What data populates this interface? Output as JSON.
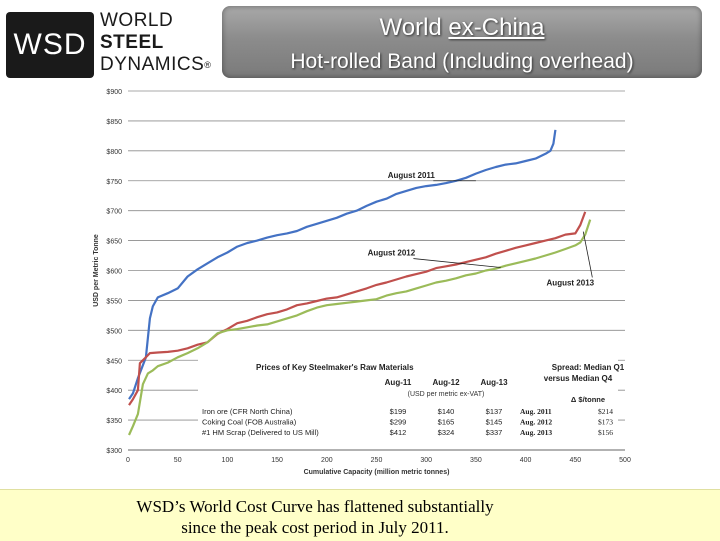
{
  "logo": {
    "abbr": "WSD",
    "line1": "WORLD",
    "line2": "STEEL",
    "line3": "DYNAMICS",
    "mark": "®"
  },
  "header": {
    "title_prefix": "World ",
    "title_underlined": "ex-China",
    "subtitle": "Hot-rolled Band (Including overhead)"
  },
  "caption": {
    "line1": "WSD’s World Cost Curve has flattened substantially",
    "line2": "since the peak cost period in July 2011."
  },
  "chart_data": {
    "type": "line",
    "xlabel": "Cumulative Capacity (million metric tonnes)",
    "ylabel": "USD per Metric Tonne",
    "xlim": [
      0,
      500
    ],
    "ylim": [
      300,
      900
    ],
    "x_ticks": [
      "0",
      "50",
      "100",
      "150",
      "200",
      "250",
      "300",
      "350",
      "400",
      "450",
      "500"
    ],
    "y_ticks": [
      "$300",
      "$350",
      "$400",
      "$450",
      "$500",
      "$550",
      "$600",
      "$650",
      "$700",
      "$750",
      "$800",
      "$850",
      "$900"
    ],
    "grid": true,
    "series": [
      {
        "name": "August 2011",
        "color": "#4472c4",
        "points": [
          [
            1,
            385
          ],
          [
            5,
            395
          ],
          [
            10,
            420
          ],
          [
            18,
            455
          ],
          [
            22,
            520
          ],
          [
            25,
            540
          ],
          [
            30,
            555
          ],
          [
            40,
            562
          ],
          [
            50,
            570
          ],
          [
            60,
            590
          ],
          [
            70,
            602
          ],
          [
            80,
            612
          ],
          [
            90,
            622
          ],
          [
            100,
            630
          ],
          [
            110,
            640
          ],
          [
            120,
            646
          ],
          [
            130,
            650
          ],
          [
            140,
            655
          ],
          [
            150,
            659
          ],
          [
            160,
            662
          ],
          [
            170,
            666
          ],
          [
            180,
            673
          ],
          [
            190,
            678
          ],
          [
            200,
            683
          ],
          [
            210,
            688
          ],
          [
            220,
            695
          ],
          [
            230,
            700
          ],
          [
            240,
            708
          ],
          [
            250,
            715
          ],
          [
            260,
            720
          ],
          [
            270,
            728
          ],
          [
            280,
            733
          ],
          [
            290,
            738
          ],
          [
            300,
            741
          ],
          [
            310,
            743
          ],
          [
            320,
            746
          ],
          [
            330,
            750
          ],
          [
            340,
            755
          ],
          [
            350,
            762
          ],
          [
            360,
            768
          ],
          [
            370,
            773
          ],
          [
            380,
            777
          ],
          [
            390,
            779
          ],
          [
            400,
            783
          ],
          [
            410,
            787
          ],
          [
            420,
            795
          ],
          [
            425,
            800
          ],
          [
            428,
            812
          ],
          [
            430,
            835
          ]
        ]
      },
      {
        "name": "August 2012",
        "color": "#c0504d",
        "points": [
          [
            1,
            375
          ],
          [
            5,
            385
          ],
          [
            10,
            400
          ],
          [
            12,
            445
          ],
          [
            18,
            455
          ],
          [
            22,
            462
          ],
          [
            30,
            463
          ],
          [
            40,
            464
          ],
          [
            50,
            466
          ],
          [
            60,
            470
          ],
          [
            70,
            476
          ],
          [
            80,
            480
          ],
          [
            90,
            494
          ],
          [
            100,
            502
          ],
          [
            110,
            512
          ],
          [
            120,
            516
          ],
          [
            130,
            522
          ],
          [
            140,
            527
          ],
          [
            150,
            530
          ],
          [
            160,
            535
          ],
          [
            170,
            542
          ],
          [
            180,
            545
          ],
          [
            190,
            549
          ],
          [
            200,
            553
          ],
          [
            210,
            555
          ],
          [
            220,
            560
          ],
          [
            230,
            565
          ],
          [
            240,
            570
          ],
          [
            250,
            576
          ],
          [
            260,
            580
          ],
          [
            270,
            585
          ],
          [
            280,
            590
          ],
          [
            290,
            594
          ],
          [
            300,
            598
          ],
          [
            310,
            604
          ],
          [
            320,
            607
          ],
          [
            330,
            610
          ],
          [
            340,
            614
          ],
          [
            350,
            618
          ],
          [
            360,
            622
          ],
          [
            370,
            628
          ],
          [
            380,
            633
          ],
          [
            390,
            638
          ],
          [
            400,
            642
          ],
          [
            410,
            646
          ],
          [
            420,
            650
          ],
          [
            430,
            654
          ],
          [
            440,
            660
          ],
          [
            450,
            662
          ],
          [
            455,
            676
          ],
          [
            460,
            698
          ]
        ]
      },
      {
        "name": "August 2013",
        "color": "#9bbb59",
        "points": [
          [
            1,
            325
          ],
          [
            5,
            340
          ],
          [
            10,
            360
          ],
          [
            15,
            410
          ],
          [
            20,
            428
          ],
          [
            25,
            433
          ],
          [
            30,
            440
          ],
          [
            40,
            446
          ],
          [
            50,
            455
          ],
          [
            60,
            462
          ],
          [
            70,
            470
          ],
          [
            80,
            480
          ],
          [
            90,
            495
          ],
          [
            100,
            500
          ],
          [
            110,
            502
          ],
          [
            120,
            505
          ],
          [
            130,
            508
          ],
          [
            140,
            510
          ],
          [
            150,
            515
          ],
          [
            160,
            520
          ],
          [
            170,
            525
          ],
          [
            180,
            532
          ],
          [
            190,
            538
          ],
          [
            200,
            542
          ],
          [
            210,
            544
          ],
          [
            220,
            546
          ],
          [
            230,
            548
          ],
          [
            240,
            550
          ],
          [
            250,
            552
          ],
          [
            260,
            558
          ],
          [
            270,
            562
          ],
          [
            280,
            565
          ],
          [
            290,
            570
          ],
          [
            300,
            575
          ],
          [
            310,
            580
          ],
          [
            320,
            583
          ],
          [
            330,
            587
          ],
          [
            340,
            592
          ],
          [
            350,
            595
          ],
          [
            360,
            600
          ],
          [
            370,
            603
          ],
          [
            380,
            608
          ],
          [
            390,
            612
          ],
          [
            400,
            616
          ],
          [
            410,
            620
          ],
          [
            420,
            625
          ],
          [
            430,
            630
          ],
          [
            440,
            636
          ],
          [
            450,
            642
          ],
          [
            455,
            647
          ],
          [
            460,
            660
          ],
          [
            465,
            685
          ]
        ]
      }
    ],
    "annotations": [
      {
        "label": "August 2011",
        "x": 285,
        "y": 755
      },
      {
        "label": "August 2012",
        "x": 265,
        "y": 625
      },
      {
        "label": "August 2013",
        "x": 445,
        "y": 575
      }
    ],
    "inset_table": {
      "title": "Prices of Key Steelmaker's Raw Materials",
      "headers": [
        "Aug-11",
        "Aug-12",
        "Aug-13"
      ],
      "subheader": "(USD per metric ex-VAT)",
      "rows": [
        {
          "label": "Iron ore (CFR North China)",
          "values": [
            "$199",
            "$140",
            "$137"
          ]
        },
        {
          "label": "Coking Coal (FOB Australia)",
          "values": [
            "$299",
            "$165",
            "$145"
          ]
        },
        {
          "label": "#1 HM Scrap (Delivered to US Mill)",
          "values": [
            "$412",
            "$324",
            "$337"
          ]
        }
      ],
      "spread_title_1": "Spread: Median Q1",
      "spread_title_2": "versus Median Q4",
      "spread_unit": "Δ $/tonne",
      "spread_rows": [
        {
          "label": "Aug. 2011",
          "value": "$214"
        },
        {
          "label": "Aug. 2012",
          "value": "$173"
        },
        {
          "label": "Aug. 2013",
          "value": "$156"
        }
      ]
    }
  }
}
